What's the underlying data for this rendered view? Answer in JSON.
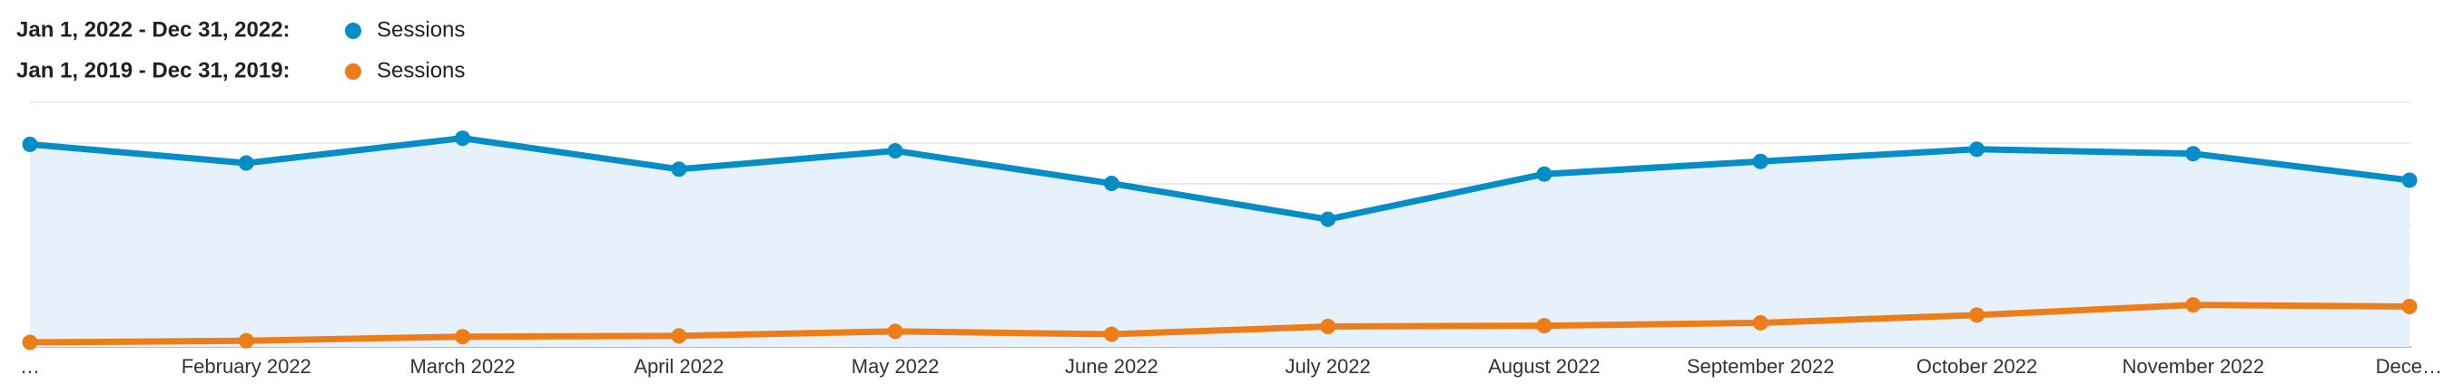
{
  "chart_data": {
    "type": "line",
    "categories": [
      "…",
      "February 2022",
      "March 2022",
      "April 2022",
      "May 2022",
      "June 2022",
      "July 2022",
      "August 2022",
      "September 2022",
      "October 2022",
      "November 2022",
      "Dece…"
    ],
    "series": [
      {
        "period": "Jan 1, 2022 - Dec 31, 2022:",
        "name": "Sessions",
        "color": "#058dc7",
        "area_color": "#e6f1fb",
        "values": [
          4.97,
          4.51,
          5.12,
          4.36,
          4.81,
          4.01,
          3.13,
          4.24,
          4.55,
          4.85,
          4.74,
          4.09
        ]
      },
      {
        "period": "Jan 1, 2019 - Dec 31, 2019:",
        "name": "Sessions",
        "color": "#ed7e17",
        "values": [
          0.11,
          0.15,
          0.25,
          0.27,
          0.38,
          0.31,
          0.5,
          0.52,
          0.59,
          0.78,
          1.03,
          0.99
        ]
      }
    ],
    "ylim": [
      0,
      6
    ],
    "grid_lines": [
      0,
      1,
      2,
      3,
      4,
      5,
      6
    ]
  }
}
